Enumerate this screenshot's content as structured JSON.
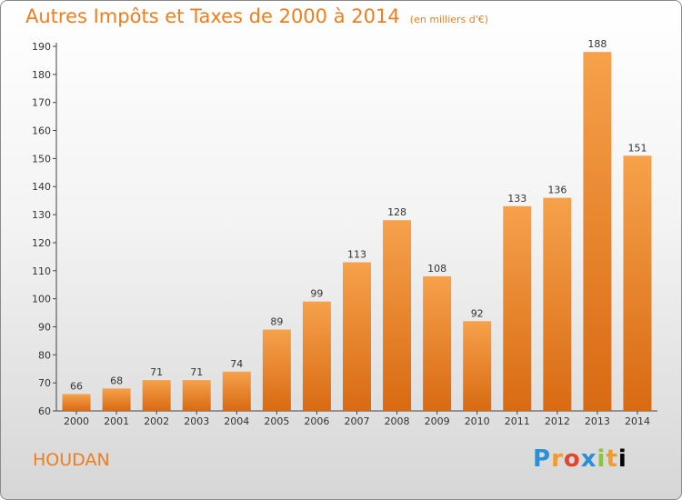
{
  "header": {
    "title": "Autres Impôts et Taxes de 2000 à 2014",
    "unit": "(en milliers d'€)"
  },
  "footer": {
    "commune": "HOUDAN",
    "logo_letters": [
      "P",
      "r",
      "o",
      "x",
      "i",
      "t",
      "i"
    ]
  },
  "colors": {
    "bar_light": "#f6a14b",
    "bar_dark": "#d86a12",
    "title": "#f07d1e"
  },
  "chart_data": {
    "type": "bar",
    "title": "Autres Impôts et Taxes de 2000 à 2014",
    "categories": [
      "2000",
      "2001",
      "2002",
      "2003",
      "2004",
      "2005",
      "2006",
      "2007",
      "2008",
      "2009",
      "2010",
      "2011",
      "2012",
      "2013",
      "2014"
    ],
    "values": [
      66,
      68,
      71,
      71,
      74,
      89,
      99,
      113,
      128,
      108,
      92,
      133,
      136,
      188,
      151
    ],
    "ylim": [
      60,
      190
    ],
    "yticks": [
      60,
      70,
      80,
      90,
      100,
      110,
      120,
      130,
      140,
      150,
      160,
      170,
      180,
      190
    ],
    "grid": false,
    "data_labels": true
  }
}
